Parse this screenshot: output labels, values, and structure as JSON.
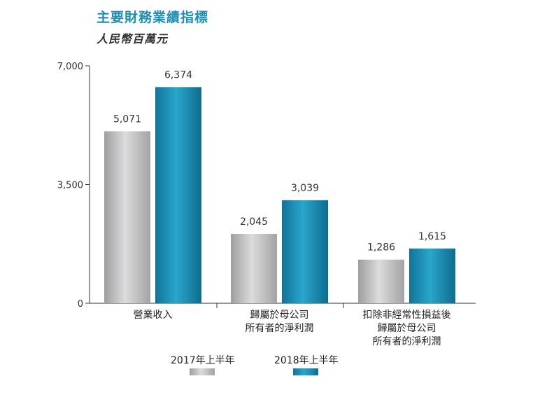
{
  "title": "主要財務業績指標",
  "subtitle": "人民幣百萬元",
  "chart_data": {
    "type": "bar",
    "title": "主要財務業績指標",
    "subtitle": "人民幣百萬元",
    "categories": [
      [
        "營業收入"
      ],
      [
        "歸屬於母公司",
        "所有者的淨利潤"
      ],
      [
        "扣除非經常性損益後",
        "歸屬於母公司",
        "所有者的淨利潤"
      ]
    ],
    "series": [
      {
        "name": "2017年上半年",
        "values": [
          5071,
          2045,
          1286
        ],
        "labels": [
          "5,071",
          "2,045",
          "1,286"
        ],
        "color": "#b3b3b5"
      },
      {
        "name": "2018年上半年",
        "values": [
          6374,
          3039,
          1615
        ],
        "labels": [
          "6,374",
          "3,039",
          "1,615"
        ],
        "color": "#1c8db4"
      }
    ],
    "yticks": [
      {
        "value": 0,
        "label": "0"
      },
      {
        "value": 3500,
        "label": "3,500"
      },
      {
        "value": 7000,
        "label": "7,000"
      }
    ],
    "ylim": [
      0,
      7000
    ],
    "xlabel": "",
    "ylabel": "",
    "grid": false,
    "legend_position": "bottom-center"
  }
}
